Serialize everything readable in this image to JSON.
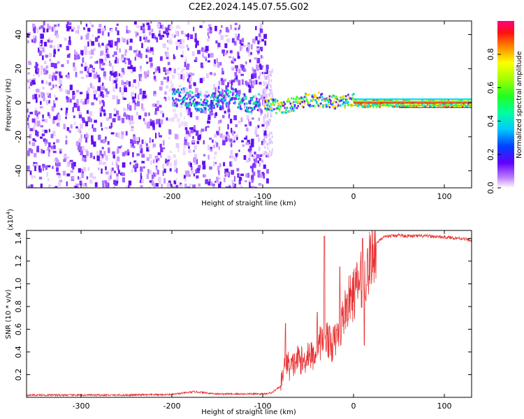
{
  "title": "C2E2.2024.145.07.55.G02",
  "chart_data": [
    {
      "type": "heatmap",
      "xlabel": "Height of straight line (km)",
      "ylabel": "Frequency (Hz)",
      "xlim": [
        -360,
        130
      ],
      "ylim": [
        -50,
        48
      ],
      "xticks": [
        -300,
        -200,
        -100,
        0,
        100
      ],
      "yticks": [
        -40,
        -20,
        0,
        20,
        40
      ],
      "regions": [
        {
          "description_x_range": [
            -360,
            -95
          ],
          "freq_range": [
            -50,
            48
          ],
          "amplitude_level": 0.08
        },
        {
          "description_x_range": [
            -200,
            -105
          ],
          "freq_center": 2,
          "amplitude_level": 0.3
        },
        {
          "description_x_range": [
            -100,
            0
          ],
          "freq_center": 3,
          "amplitude_level": 0.5
        },
        {
          "description_x_range": [
            0,
            130
          ],
          "freq_center": 0,
          "amplitude_level": 0.9
        }
      ],
      "colorbar": {
        "label": "Normalized spectral amplitude",
        "range": [
          0.0,
          1.0
        ],
        "ticks": [
          "0.0",
          "0.2",
          "0.4",
          "0.6",
          "0.8"
        ]
      }
    },
    {
      "type": "line",
      "xlabel": "Height of straight line (km)",
      "ylabel": "SNR (10 * v/v)",
      "yscale_label": "(x10",
      "yscale_exp": "4",
      "yscale_close": ")",
      "xlim": [
        -360,
        130
      ],
      "ylim": [
        0,
        1.47
      ],
      "xticks": [
        -300,
        -200,
        -100,
        0,
        100
      ],
      "yticks": [
        "0.2",
        "0.4",
        "0.6",
        "0.8",
        "1.0",
        "1.2",
        "1.4"
      ],
      "color": "#e83030",
      "series": [
        {
          "x": [
            -360,
            -300,
            -250,
            -200,
            -175,
            -150,
            -120,
            -100,
            -90,
            -80,
            -75,
            -70,
            -65,
            -60,
            -55,
            -50,
            -45,
            -40,
            -35,
            -30,
            -25,
            -20,
            -15,
            -10,
            -5,
            0,
            5,
            10,
            15,
            20,
            25,
            30,
            40,
            50,
            60,
            80,
            100,
            120,
            130
          ],
          "y": [
            0.02,
            0.02,
            0.02,
            0.025,
            0.05,
            0.03,
            0.03,
            0.03,
            0.04,
            0.1,
            0.35,
            0.25,
            0.3,
            0.35,
            0.3,
            0.4,
            0.35,
            0.45,
            0.5,
            0.55,
            0.45,
            0.5,
            0.6,
            0.75,
            0.85,
            0.9,
            1.0,
            1.05,
            1.1,
            1.25,
            1.35,
            1.4,
            1.42,
            1.43,
            1.42,
            1.42,
            1.41,
            1.4,
            1.38
          ]
        }
      ],
      "spikes": [
        {
          "x": -75,
          "y": 0.65
        },
        {
          "x": -32,
          "y": 1.42
        },
        {
          "x": -40,
          "y": 0.75
        },
        {
          "x": -15,
          "y": 1.15
        },
        {
          "x": 10,
          "y": 1.4
        },
        {
          "x": 12,
          "y": 0.46
        }
      ]
    }
  ]
}
